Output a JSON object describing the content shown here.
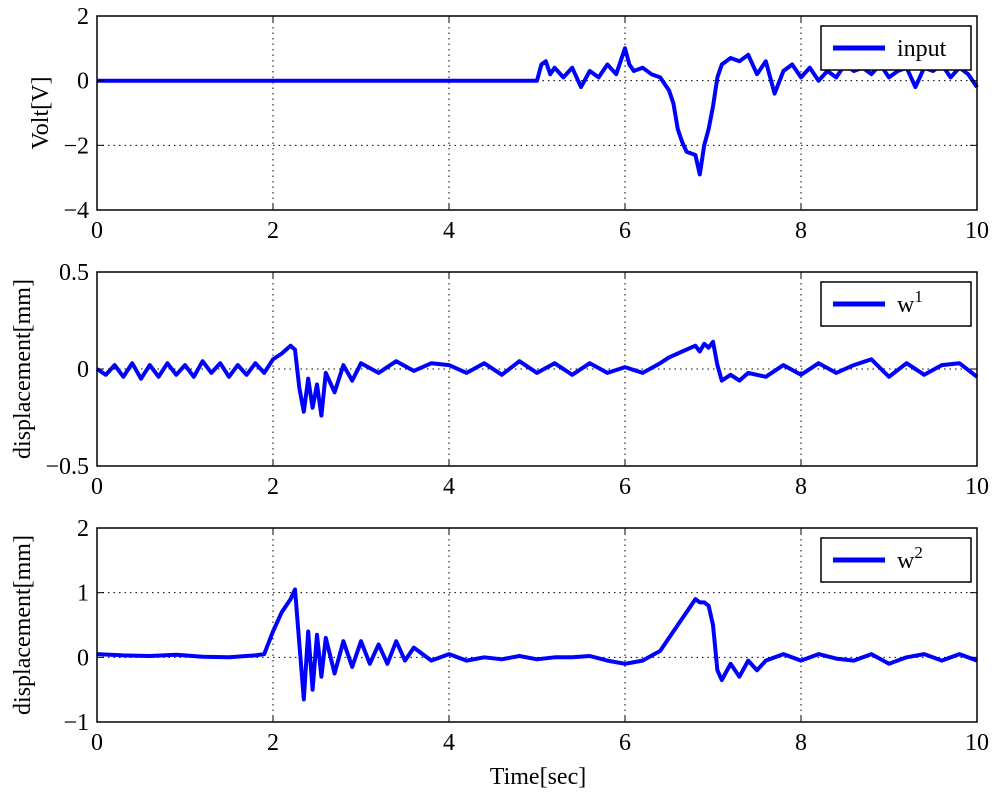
{
  "figure": {
    "xlabel": "Time[sec]"
  },
  "chart_data": [
    {
      "type": "line",
      "ylabel": "Volt[V]",
      "xlim": [
        0,
        10
      ],
      "ylim": [
        -4,
        2
      ],
      "xticks": [
        0,
        2,
        4,
        6,
        8,
        10
      ],
      "yticks": [
        -4,
        -2,
        0,
        2
      ],
      "xticklabels": [
        "0",
        "2",
        "4",
        "6",
        "8",
        "10"
      ],
      "yticklabels": [
        "−4",
        "−2",
        "0",
        "2"
      ],
      "grid": true,
      "legend_position": "top-right",
      "color": "#0000ff",
      "series": [
        {
          "name": "input",
          "legend_text": "input",
          "x": [
            0,
            1,
            2,
            3,
            4,
            5,
            5.05,
            5.1,
            5.15,
            5.2,
            5.3,
            5.4,
            5.5,
            5.6,
            5.7,
            5.8,
            5.9,
            6.0,
            6.05,
            6.1,
            6.2,
            6.3,
            6.4,
            6.5,
            6.55,
            6.6,
            6.65,
            6.7,
            6.8,
            6.85,
            6.9,
            6.95,
            7.0,
            7.05,
            7.1,
            7.2,
            7.3,
            7.4,
            7.5,
            7.6,
            7.7,
            7.8,
            7.9,
            8.0,
            8.1,
            8.2,
            8.3,
            8.4,
            8.5,
            8.6,
            8.7,
            8.8,
            8.9,
            9.0,
            9.1,
            9.2,
            9.3,
            9.4,
            9.5,
            9.6,
            9.7,
            9.8,
            9.9,
            10.0
          ],
          "y": [
            0,
            0,
            0,
            0,
            0,
            0,
            0.5,
            0.6,
            0.2,
            0.4,
            0.1,
            0.4,
            -0.2,
            0.3,
            0.1,
            0.5,
            0.2,
            1.0,
            0.5,
            0.3,
            0.4,
            0.2,
            0.1,
            -0.3,
            -0.7,
            -1.5,
            -1.9,
            -2.2,
            -2.3,
            -2.9,
            -2.0,
            -1.5,
            -0.8,
            0.1,
            0.5,
            0.7,
            0.6,
            0.8,
            0.2,
            0.6,
            -0.4,
            0.3,
            0.5,
            0.1,
            0.4,
            0.0,
            0.3,
            0.1,
            0.5,
            0.3,
            0.4,
            0.2,
            0.5,
            0.1,
            0.3,
            0.4,
            -0.2,
            0.4,
            0.3,
            0.5,
            0.1,
            0.4,
            0.2,
            -0.2
          ]
        }
      ]
    },
    {
      "type": "line",
      "ylabel": "displacement[mm]",
      "xlim": [
        0,
        10
      ],
      "ylim": [
        -0.5,
        0.5
      ],
      "xticks": [
        0,
        2,
        4,
        6,
        8,
        10
      ],
      "yticks": [
        -0.5,
        0,
        0.5
      ],
      "xticklabels": [
        "0",
        "2",
        "4",
        "6",
        "8",
        "10"
      ],
      "yticklabels": [
        "−0.5",
        "0",
        "0.5"
      ],
      "grid": true,
      "legend_position": "top-right",
      "color": "#0000ff",
      "series": [
        {
          "name": "w1",
          "legend_text": "w",
          "legend_superscript": "1",
          "x": [
            0,
            0.1,
            0.2,
            0.3,
            0.4,
            0.5,
            0.6,
            0.7,
            0.8,
            0.9,
            1.0,
            1.1,
            1.2,
            1.3,
            1.4,
            1.5,
            1.6,
            1.7,
            1.8,
            1.9,
            2.0,
            2.1,
            2.2,
            2.25,
            2.3,
            2.35,
            2.4,
            2.45,
            2.5,
            2.55,
            2.6,
            2.7,
            2.8,
            2.9,
            3.0,
            3.2,
            3.4,
            3.6,
            3.8,
            4.0,
            4.2,
            4.4,
            4.6,
            4.8,
            5.0,
            5.2,
            5.4,
            5.6,
            5.8,
            6.0,
            6.2,
            6.4,
            6.5,
            6.6,
            6.7,
            6.8,
            6.85,
            6.9,
            6.95,
            7.0,
            7.05,
            7.1,
            7.2,
            7.3,
            7.4,
            7.6,
            7.8,
            8.0,
            8.2,
            8.4,
            8.6,
            8.8,
            9.0,
            9.2,
            9.4,
            9.6,
            9.8,
            10.0
          ],
          "y": [
            0,
            -0.03,
            0.02,
            -0.04,
            0.03,
            -0.05,
            0.02,
            -0.04,
            0.03,
            -0.03,
            0.02,
            -0.04,
            0.04,
            -0.02,
            0.03,
            -0.04,
            0.02,
            -0.03,
            0.03,
            -0.02,
            0.05,
            0.08,
            0.12,
            0.1,
            -0.1,
            -0.22,
            -0.05,
            -0.2,
            -0.08,
            -0.24,
            -0.02,
            -0.12,
            0.02,
            -0.06,
            0.03,
            -0.02,
            0.04,
            -0.01,
            0.03,
            0.02,
            -0.02,
            0.03,
            -0.03,
            0.04,
            -0.02,
            0.03,
            -0.03,
            0.03,
            -0.02,
            0.01,
            -0.02,
            0.03,
            0.06,
            0.08,
            0.1,
            0.12,
            0.09,
            0.13,
            0.11,
            0.14,
            0.02,
            -0.06,
            -0.03,
            -0.06,
            -0.02,
            -0.04,
            0.02,
            -0.03,
            0.03,
            -0.02,
            0.02,
            0.05,
            -0.04,
            0.03,
            -0.03,
            0.02,
            0.03,
            -0.04
          ]
        }
      ]
    },
    {
      "type": "line",
      "ylabel": "displacement[mm]",
      "xlim": [
        0,
        10
      ],
      "ylim": [
        -1,
        2
      ],
      "xticks": [
        0,
        2,
        4,
        6,
        8,
        10
      ],
      "yticks": [
        -1,
        0,
        1,
        2
      ],
      "xticklabels": [
        "0",
        "2",
        "4",
        "6",
        "8",
        "10"
      ],
      "yticklabels": [
        "−1",
        "0",
        "1",
        "2"
      ],
      "grid": true,
      "legend_position": "top-right",
      "color": "#0000ff",
      "series": [
        {
          "name": "w2",
          "legend_text": "w",
          "legend_superscript": "2",
          "x": [
            0,
            0.3,
            0.6,
            0.9,
            1.2,
            1.5,
            1.8,
            1.9,
            2.0,
            2.1,
            2.2,
            2.25,
            2.3,
            2.35,
            2.4,
            2.45,
            2.5,
            2.55,
            2.6,
            2.7,
            2.8,
            2.9,
            3.0,
            3.1,
            3.2,
            3.3,
            3.4,
            3.5,
            3.6,
            3.8,
            4.0,
            4.2,
            4.4,
            4.6,
            4.8,
            5.0,
            5.2,
            5.4,
            5.6,
            5.8,
            6.0,
            6.2,
            6.4,
            6.5,
            6.6,
            6.7,
            6.8,
            6.85,
            6.9,
            6.95,
            7.0,
            7.05,
            7.1,
            7.2,
            7.3,
            7.4,
            7.5,
            7.6,
            7.8,
            8.0,
            8.2,
            8.4,
            8.6,
            8.8,
            9.0,
            9.2,
            9.4,
            9.6,
            9.8,
            10.0
          ],
          "y": [
            0.05,
            0.03,
            0.02,
            0.04,
            0.01,
            0.0,
            0.03,
            0.05,
            0.4,
            0.7,
            0.9,
            1.05,
            0.2,
            -0.65,
            0.4,
            -0.5,
            0.35,
            -0.3,
            0.3,
            -0.25,
            0.25,
            -0.15,
            0.25,
            -0.1,
            0.2,
            -0.1,
            0.25,
            -0.05,
            0.15,
            -0.05,
            0.05,
            -0.05,
            0.0,
            -0.03,
            0.02,
            -0.03,
            0.0,
            0.0,
            0.02,
            -0.05,
            -0.1,
            -0.05,
            0.1,
            0.3,
            0.5,
            0.7,
            0.9,
            0.85,
            0.85,
            0.8,
            0.5,
            -0.2,
            -0.35,
            -0.1,
            -0.3,
            -0.05,
            -0.2,
            -0.05,
            0.05,
            -0.05,
            0.05,
            -0.02,
            -0.05,
            0.05,
            -0.1,
            0.0,
            0.05,
            -0.05,
            0.05,
            -0.05
          ]
        }
      ]
    }
  ]
}
